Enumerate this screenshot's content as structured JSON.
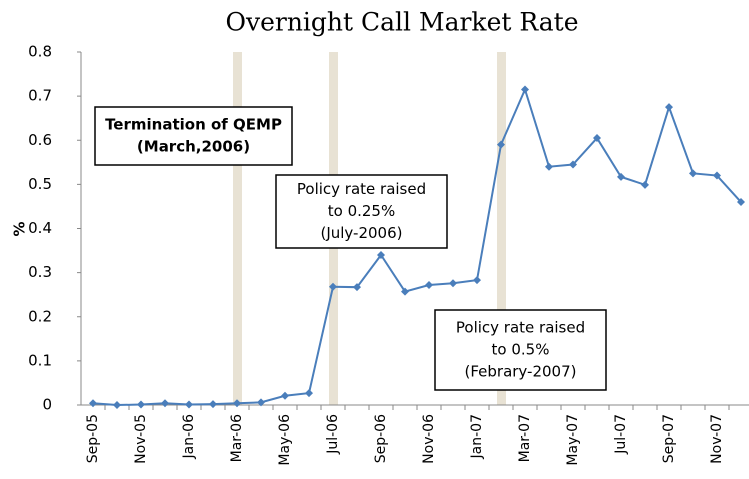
{
  "chart_data": {
    "type": "line",
    "title": "Overnight Call Market Rate",
    "y_label": "%",
    "categories": [
      "Sep-05",
      null,
      "Nov-05",
      null,
      "Jan-06",
      null,
      "Mar-06",
      null,
      "May-06",
      null,
      "Jul-06",
      null,
      "Sep-06",
      null,
      "Nov-06",
      null,
      "Jan-07",
      null,
      "Mar-07",
      null,
      "May-07",
      null,
      "Jul-07",
      null,
      "Sep-07",
      null,
      "Nov-07",
      null
    ],
    "series": [
      {
        "color": "#4a7ebb",
        "values": [
          0.004,
          0.0,
          0.001,
          0.004,
          0.001,
          0.002,
          0.004,
          0.006,
          0.021,
          0.027,
          0.268,
          0.267,
          0.34,
          0.257,
          0.272,
          0.276,
          0.283,
          0.59,
          0.715,
          0.54,
          0.545,
          0.605,
          0.517,
          0.499,
          0.675,
          0.525,
          0.52,
          0.46
        ]
      }
    ],
    "ylim": [
      0,
      0.8
    ],
    "yticks": [
      0,
      0.1,
      0.2,
      0.3,
      0.4,
      0.5,
      0.6,
      0.7,
      0.8
    ],
    "annotations": [
      {
        "lines": [
          "Termination of QEMP",
          "(March,2006)"
        ]
      },
      {
        "lines": [
          "Policy rate raised",
          "to 0.25%",
          "(July-2006)"
        ]
      },
      {
        "lines": [
          "Policy rate raised",
          "to 0.5%",
          "(Febrary-2007)"
        ]
      }
    ]
  }
}
